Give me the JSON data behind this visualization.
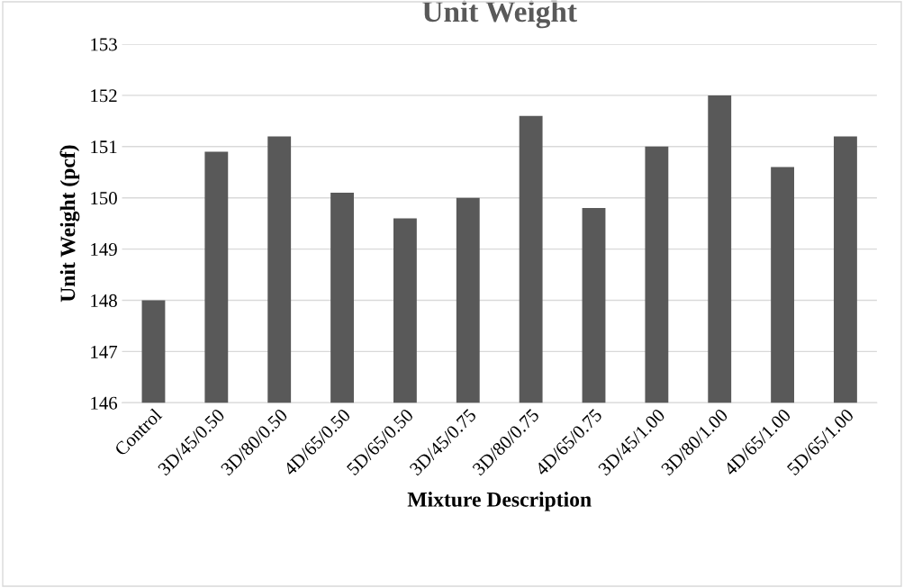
{
  "chart_data": {
    "type": "bar",
    "title": "Unit Weight",
    "xlabel": "Mixture Description",
    "ylabel": "Unit Weight (pcf)",
    "categories": [
      "Control",
      "3D/45/0.50",
      "3D/80/0.50",
      "4D/65/0.50",
      "5D/65/0.50",
      "3D/45/0.75",
      "3D/80/0.75",
      "4D/65/0.75",
      "3D/45/1.00",
      "3D/80/1.00",
      "4D/65/1.00",
      "5D/65/1.00"
    ],
    "values": [
      148.0,
      150.9,
      151.2,
      150.1,
      149.6,
      150.0,
      151.6,
      149.8,
      151.0,
      152.0,
      150.6,
      151.2
    ],
    "color": "#595959",
    "ylim": [
      146,
      153
    ],
    "yticks": [
      146,
      147,
      148,
      149,
      150,
      151,
      152,
      153
    ],
    "grid": "y"
  }
}
